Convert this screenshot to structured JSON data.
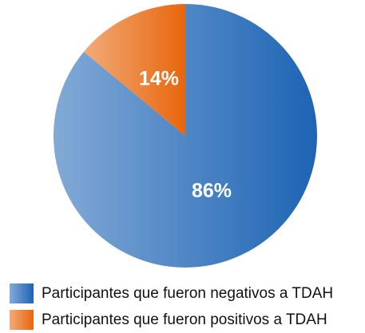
{
  "chart_data": {
    "type": "pie",
    "categories": [
      "Participantes que fueron negativos a TDAH",
      "Participantes que fueron positivos a TDAH"
    ],
    "values": [
      86,
      14
    ],
    "value_labels": [
      "86%",
      "14%"
    ],
    "colors": [
      "#1d64b4",
      "#e8660c"
    ]
  }
}
